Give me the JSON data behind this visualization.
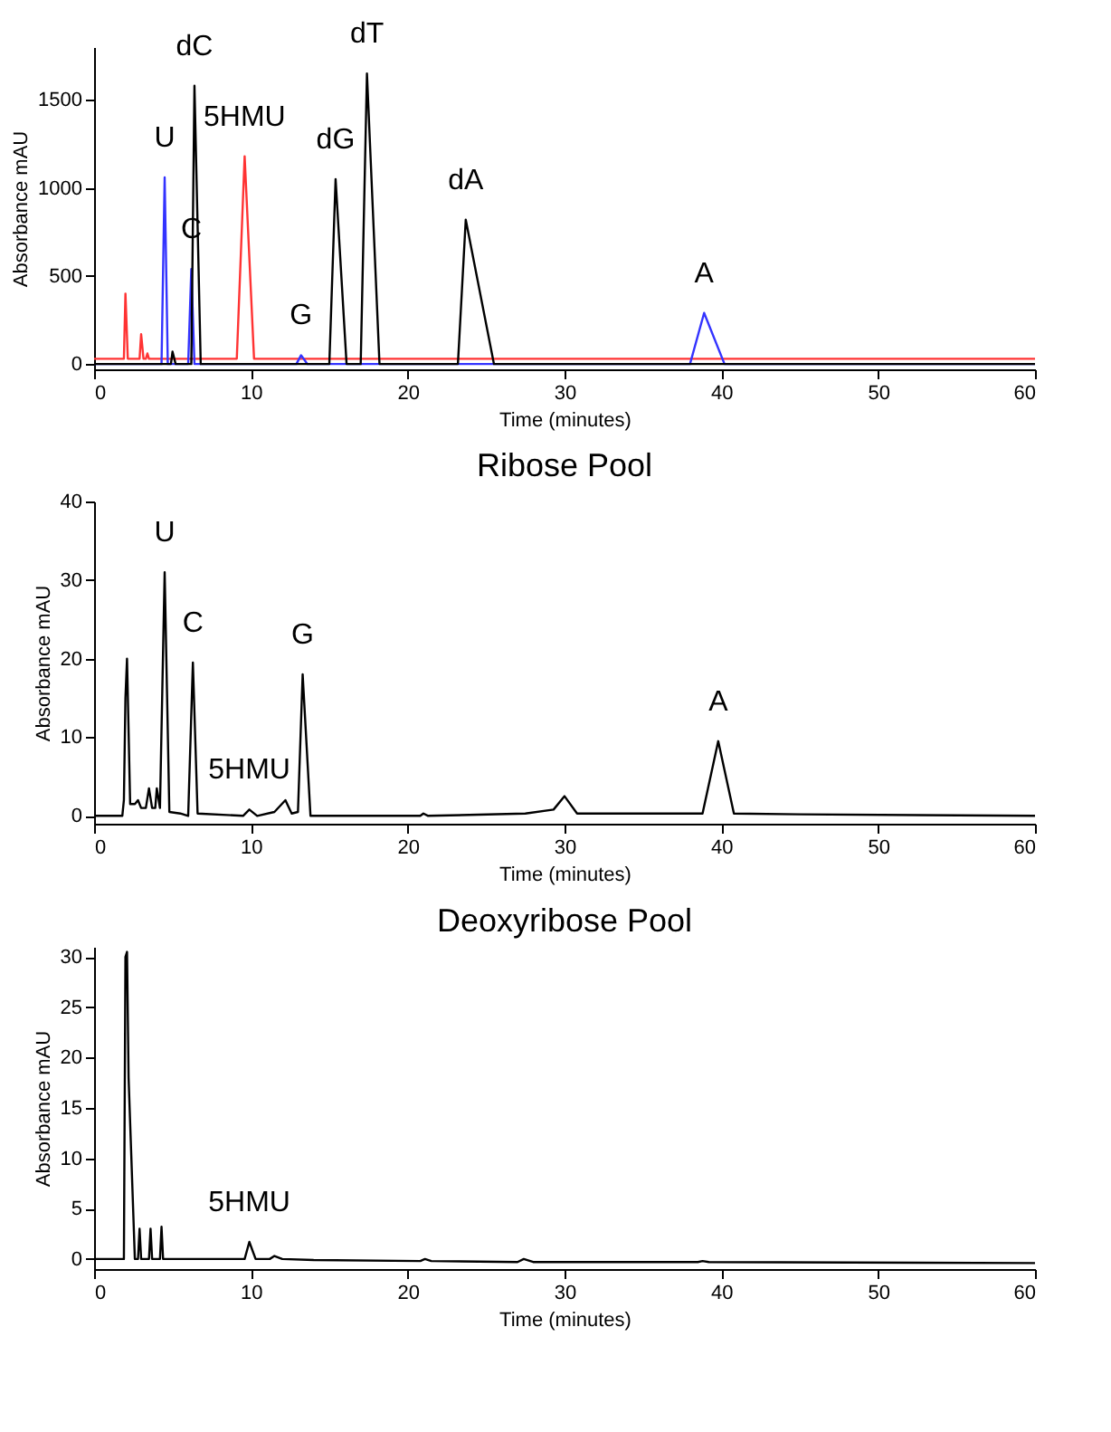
{
  "chart_data": [
    {
      "type": "line",
      "xlabel": "Time (minutes)",
      "ylabel": "Absorbance mAU",
      "xlim": [
        0,
        60
      ],
      "ylim": [
        -30,
        1800
      ],
      "xticks": [
        0,
        10,
        20,
        30,
        40,
        50,
        60
      ],
      "yticks": [
        0,
        500,
        1000,
        1500
      ],
      "grid": false,
      "series": [
        {
          "color": "#ff3333",
          "x": [
            0,
            1.9,
            2.0,
            2.15,
            2.9,
            3.0,
            3.15,
            3.3,
            3.4,
            3.5,
            9.1,
            9.6,
            10.2,
            60
          ],
          "values": [
            30,
            30,
            400,
            30,
            30,
            170,
            30,
            30,
            60,
            30,
            30,
            1180,
            30,
            30
          ]
        },
        {
          "color": "#3333ff",
          "x": [
            0,
            4.3,
            4.5,
            4.7,
            6.0,
            6.2,
            6.4,
            12.9,
            13.2,
            13.6,
            38.0,
            38.9,
            40.2,
            60
          ],
          "values": [
            0,
            0,
            1060,
            0,
            0,
            540,
            0,
            0,
            50,
            0,
            0,
            290,
            0,
            0
          ]
        },
        {
          "color": "#000000",
          "x": [
            0,
            4.9,
            5.0,
            5.2,
            6.2,
            6.4,
            6.8,
            15.0,
            15.4,
            16.1,
            17.0,
            17.4,
            18.2,
            23.2,
            23.7,
            25.5,
            60
          ],
          "values": [
            0,
            0,
            70,
            0,
            0,
            1580,
            0,
            0,
            1050,
            0,
            0,
            1650,
            0,
            0,
            820,
            0,
            0
          ]
        }
      ],
      "annotations": [
        {
          "text": "U",
          "x": 4.5,
          "y": 1060
        },
        {
          "text": "dC",
          "x": 6.4,
          "y": 1580
        },
        {
          "text": "C",
          "x": 6.2,
          "y": 540
        },
        {
          "text": "5HMU",
          "x": 9.6,
          "y": 1180
        },
        {
          "text": "G",
          "x": 13.2,
          "y": 50
        },
        {
          "text": "dG",
          "x": 15.4,
          "y": 1050
        },
        {
          "text": "dT",
          "x": 17.4,
          "y": 1650
        },
        {
          "text": "dA",
          "x": 23.7,
          "y": 820
        },
        {
          "text": "A",
          "x": 38.9,
          "y": 290
        }
      ]
    },
    {
      "type": "line",
      "title": "Ribose Pool",
      "xlabel": "Time (minutes)",
      "ylabel": "Absorbance mAU",
      "xlim": [
        0,
        60
      ],
      "ylim": [
        -1,
        40
      ],
      "xticks": [
        0,
        10,
        20,
        30,
        40,
        50,
        60
      ],
      "yticks": [
        0,
        10,
        20,
        30,
        40
      ],
      "grid": false,
      "series": [
        {
          "color": "#000000",
          "x": [
            0,
            1.8,
            1.9,
            2.0,
            2.1,
            2.3,
            2.6,
            2.8,
            3.0,
            3.3,
            3.5,
            3.7,
            3.9,
            4.0,
            4.2,
            4.5,
            4.8,
            5.5,
            6.0,
            6.3,
            6.6,
            9.5,
            9.9,
            10.4,
            11.5,
            12.2,
            12.6,
            13.0,
            13.3,
            13.8,
            20.8,
            21.0,
            21.3,
            27.5,
            29.3,
            30.0,
            30.8,
            38.8,
            39.8,
            40.8,
            45,
            60
          ],
          "values": [
            0,
            0,
            2,
            15,
            20,
            1.5,
            1.5,
            2,
            1,
            1,
            3.5,
            1,
            1,
            3.5,
            1,
            31,
            0.5,
            0.3,
            0,
            19.5,
            0.3,
            0,
            0.8,
            0,
            0.5,
            2,
            0.3,
            0.5,
            18,
            0,
            0,
            0.3,
            0,
            0.3,
            0.8,
            2.5,
            0.3,
            0.3,
            9.5,
            0.3,
            0.2,
            0
          ]
        }
      ],
      "annotations": [
        {
          "text": "U",
          "x": 4.5,
          "y": 31
        },
        {
          "text": "C",
          "x": 6.3,
          "y": 19.5
        },
        {
          "text": "5HMU",
          "x": 9.9,
          "y": 0.8
        },
        {
          "text": "G",
          "x": 13.3,
          "y": 18
        },
        {
          "text": "A",
          "x": 39.8,
          "y": 9.5
        }
      ]
    },
    {
      "type": "line",
      "title": "Deoxyribose Pool",
      "xlabel": "Time (minutes)",
      "ylabel": "Absorbance mAU",
      "xlim": [
        0,
        60
      ],
      "ylim": [
        -1,
        31
      ],
      "xticks": [
        0,
        10,
        20,
        30,
        40,
        50,
        60
      ],
      "yticks": [
        0,
        5,
        10,
        15,
        20,
        25,
        30
      ],
      "grid": false,
      "series": [
        {
          "color": "#000000",
          "x": [
            0,
            1.9,
            2.0,
            2.1,
            2.2,
            2.6,
            2.8,
            2.9,
            3.0,
            3.5,
            3.6,
            3.7,
            4.2,
            4.3,
            4.4,
            9.6,
            9.9,
            10.3,
            11.2,
            11.5,
            12.0,
            14,
            20.8,
            21.1,
            21.5,
            27.0,
            27.4,
            28.0,
            38.5,
            38.8,
            39.2,
            60
          ],
          "values": [
            0,
            0,
            30,
            30.5,
            18,
            0,
            0,
            3,
            0,
            0,
            3,
            0,
            0,
            3.2,
            0,
            0,
            1.7,
            0,
            0,
            0.3,
            0,
            -0.1,
            -0.2,
            0,
            -0.2,
            -0.3,
            0,
            -0.3,
            -0.3,
            -0.2,
            -0.3,
            -0.4
          ]
        }
      ],
      "annotations": [
        {
          "text": "5HMU",
          "x": 9.9,
          "y": 1.7
        }
      ]
    }
  ]
}
